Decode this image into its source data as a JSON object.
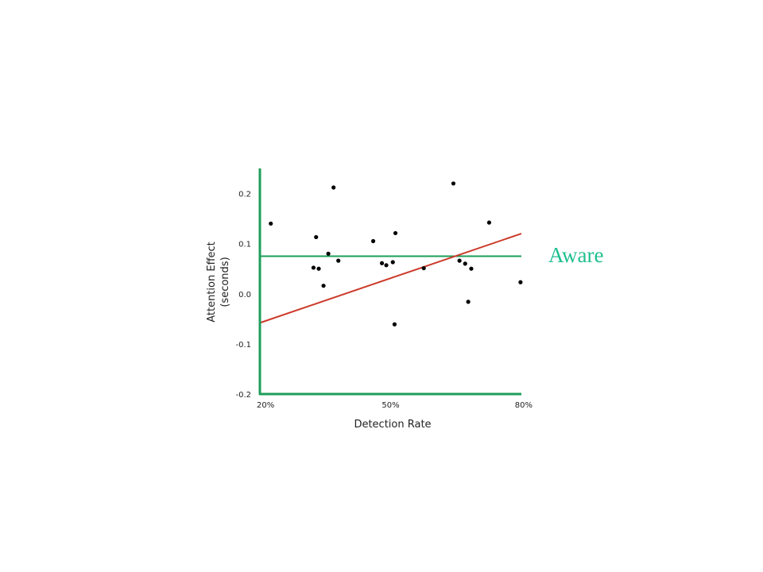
{
  "annotation": {
    "text": "Aware"
  },
  "colors": {
    "axis": "#1e9e5a",
    "threshold": "#1e9e5a",
    "fit_line": "#cc3a2a",
    "points": "#000000",
    "annotation": "#1fbf8f"
  },
  "chart_data": {
    "type": "scatter",
    "title": "",
    "xlabel": "Detection  Rate",
    "ylabel": "Attention  Effect",
    "ylabel_sub": "(seconds)",
    "xlim": [
      20,
      80
    ],
    "ylim": [
      -0.2,
      0.25
    ],
    "xticks": [
      {
        "value": 20,
        "label": "20%"
      },
      {
        "value": 50,
        "label": "50%"
      },
      {
        "value": 80,
        "label": "80%"
      }
    ],
    "yticks": [
      {
        "value": 0.2,
        "label": "0.2"
      },
      {
        "value": 0.1,
        "label": "0.1"
      },
      {
        "value": 0.0,
        "label": "0.0"
      },
      {
        "value": -0.1,
        "label": "-0.1"
      },
      {
        "value": -0.2,
        "label": "-0.2"
      }
    ],
    "grid": false,
    "threshold_y": 0.075,
    "fit_line": {
      "x": [
        20,
        80
      ],
      "y": [
        -0.058,
        0.12
      ]
    },
    "points": [
      {
        "x": 22.5,
        "y": 0.14
      },
      {
        "x": 32.3,
        "y": 0.052
      },
      {
        "x": 32.9,
        "y": 0.113
      },
      {
        "x": 33.5,
        "y": 0.05
      },
      {
        "x": 34.6,
        "y": 0.016
      },
      {
        "x": 35.7,
        "y": 0.08
      },
      {
        "x": 36.9,
        "y": 0.212
      },
      {
        "x": 38.0,
        "y": 0.066
      },
      {
        "x": 46.0,
        "y": 0.105
      },
      {
        "x": 48.0,
        "y": 0.061
      },
      {
        "x": 49.0,
        "y": 0.057
      },
      {
        "x": 50.5,
        "y": 0.063
      },
      {
        "x": 50.9,
        "y": -0.061
      },
      {
        "x": 51.1,
        "y": 0.121
      },
      {
        "x": 57.6,
        "y": 0.051
      },
      {
        "x": 64.4,
        "y": 0.22
      },
      {
        "x": 65.8,
        "y": 0.066
      },
      {
        "x": 67.1,
        "y": 0.06
      },
      {
        "x": 67.8,
        "y": -0.016
      },
      {
        "x": 68.5,
        "y": 0.05
      },
      {
        "x": 72.6,
        "y": 0.142
      },
      {
        "x": 79.8,
        "y": 0.023
      }
    ]
  }
}
